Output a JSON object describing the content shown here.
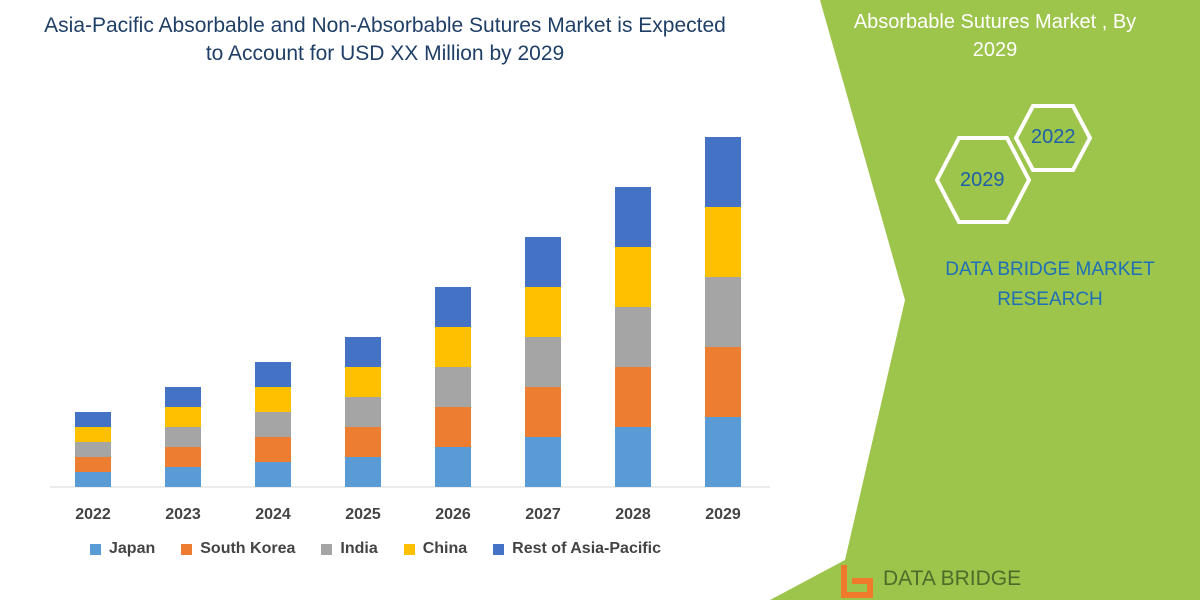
{
  "title": "Asia-Pacific Absorbable and Non-Absorbable Sutures Market is Expected to Account for USD XX Million by 2029",
  "side_panel": {
    "heading": "Absorbable Sutures Market , By 2029",
    "hex_labels": [
      "2022",
      "2029"
    ],
    "brand": "DATA BRIDGE MARKET RESEARCH",
    "logo_text": "DATA BRIDGE",
    "color": "#9dc44b"
  },
  "chart_data": {
    "type": "bar",
    "stacked": true,
    "title": "Asia-Pacific Absorbable and Non-Absorbable Sutures Market is Expected to Account for USD XX Million by 2029",
    "xlabel": "",
    "ylabel": "",
    "y_axis_shown": false,
    "grid": false,
    "legend_position": "bottom",
    "categories": [
      "2022",
      "2023",
      "2024",
      "2025",
      "2026",
      "2027",
      "2028",
      "2029"
    ],
    "series": [
      {
        "name": "Japan",
        "color": "#5b9bd5",
        "values": [
          1.5,
          2,
          2.5,
          3,
          4,
          5,
          6,
          7
        ]
      },
      {
        "name": "South Korea",
        "color": "#ed7d31",
        "values": [
          1.5,
          2,
          2.5,
          3,
          4,
          5,
          6,
          7
        ]
      },
      {
        "name": "India",
        "color": "#a5a5a5",
        "values": [
          1.5,
          2,
          2.5,
          3,
          4,
          5,
          6,
          7
        ]
      },
      {
        "name": "China",
        "color": "#ffc000",
        "values": [
          1.5,
          2,
          2.5,
          3,
          4,
          5,
          6,
          7
        ]
      },
      {
        "name": "Rest of Asia-Pacific",
        "color": "#4472c4",
        "values": [
          1.5,
          2,
          2.5,
          3,
          4,
          5,
          6,
          7
        ]
      }
    ]
  }
}
